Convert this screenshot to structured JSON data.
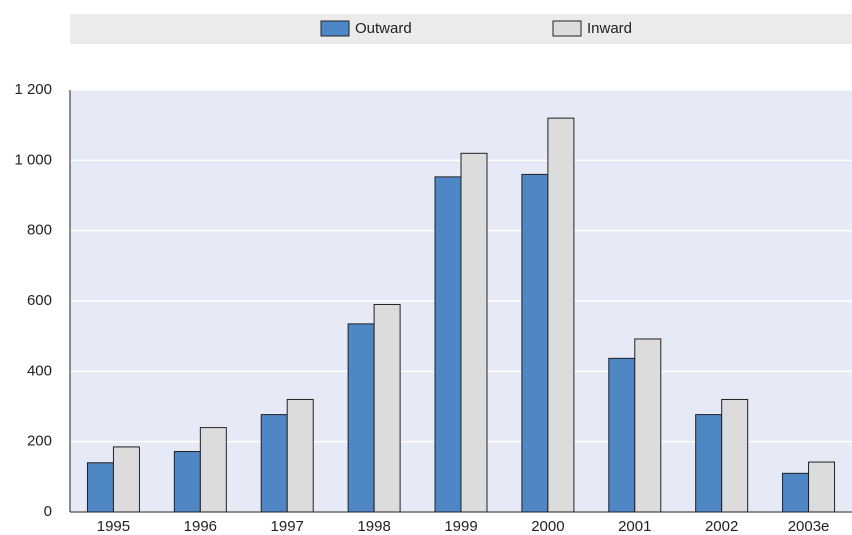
{
  "chart_data": {
    "type": "bar",
    "categories": [
      "1995",
      "1996",
      "1997",
      "1998",
      "1999",
      "2000",
      "2001",
      "2002",
      "2003e"
    ],
    "series": [
      {
        "name": "Outward",
        "color": "#4f86c6",
        "values": [
          140,
          172,
          277,
          535,
          953,
          960,
          437,
          277,
          110
        ]
      },
      {
        "name": "Inward",
        "color": "#dcdcdc",
        "values": [
          185,
          240,
          320,
          590,
          1020,
          1120,
          492,
          320,
          142
        ]
      }
    ],
    "ylim": [
      0,
      1200
    ],
    "yticks": [
      0,
      200,
      400,
      600,
      800,
      {
        "value": 1000,
        "label": "1 000"
      },
      {
        "value": 1200,
        "label": "1 200"
      }
    ],
    "grid": true,
    "legend": "top"
  }
}
